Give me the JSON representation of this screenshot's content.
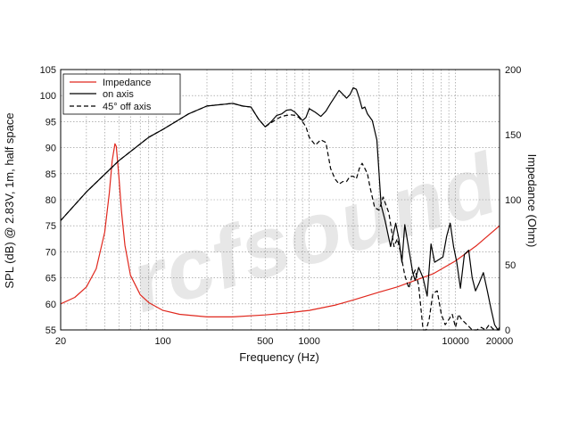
{
  "chart_data": {
    "type": "line",
    "xlabel": "Frequency (Hz)",
    "ylabel": "SPL (dB) @ 2.83V, 1m, half space",
    "y2label": "Impedance (Ohm)",
    "xscale": "log",
    "xlim": [
      20,
      20000
    ],
    "ylim": [
      55,
      105
    ],
    "y2lim": [
      0,
      200
    ],
    "grid": true,
    "legend_position": "top-left",
    "x_ticks": [
      "20",
      "100",
      "500",
      "1000",
      "10000",
      "20000"
    ],
    "y_ticks": [
      "55",
      "60",
      "65",
      "70",
      "75",
      "80",
      "85",
      "90",
      "95",
      "100",
      "105"
    ],
    "y2_ticks": [
      "0",
      "50",
      "100",
      "150",
      "200"
    ],
    "watermark": "rcfsound",
    "series": [
      {
        "name": "Impedance",
        "axis": "right",
        "color": "#e0281e",
        "dash": "solid",
        "x": [
          20,
          25,
          30,
          35,
          40,
          43,
          45,
          47,
          48,
          50,
          52,
          55,
          60,
          70,
          80,
          100,
          130,
          200,
          300,
          500,
          700,
          1000,
          1500,
          2000,
          3000,
          4000,
          5000,
          7000,
          10000,
          14000,
          20000
        ],
        "y": [
          20,
          25,
          33,
          47,
          75,
          105,
          130,
          143,
          141,
          118,
          92,
          65,
          42,
          27,
          21,
          15,
          12,
          10,
          10,
          11.5,
          13,
          15,
          19,
          23,
          29,
          33,
          37,
          43,
          53,
          65,
          80
        ]
      },
      {
        "name": "on axis",
        "axis": "left",
        "color": "#000000",
        "dash": "solid",
        "x": [
          20,
          30,
          50,
          80,
          100,
          150,
          200,
          300,
          350,
          400,
          450,
          500,
          550,
          600,
          650,
          700,
          750,
          800,
          850,
          900,
          950,
          1000,
          1100,
          1200,
          1300,
          1400,
          1600,
          1800,
          1900,
          2000,
          2100,
          2200,
          2300,
          2400,
          2500,
          2700,
          2900,
          3100,
          3300,
          3600,
          3900,
          4100,
          4300,
          4500,
          4700,
          4900,
          5100,
          5300,
          5600,
          6000,
          6400,
          6800,
          7200,
          7700,
          8200,
          8700,
          9200,
          9700,
          10200,
          10800,
          11500,
          12300,
          13000,
          13700,
          14500,
          15500,
          16500,
          17500,
          18500,
          19500,
          20000
        ],
        "y": [
          76,
          81.5,
          87.5,
          92,
          93.5,
          96.5,
          98,
          98.5,
          98,
          97.8,
          95.5,
          94,
          95,
          96.2,
          96.5,
          97.2,
          97.3,
          96.8,
          96,
          95.2,
          95.8,
          97.5,
          96.8,
          96,
          97,
          98.5,
          101,
          99.5,
          100.2,
          101.5,
          101.2,
          99.5,
          97.5,
          97.8,
          96.5,
          95.2,
          91.5,
          79,
          76,
          71,
          75.5,
          72.5,
          68,
          75.2,
          72,
          69,
          66,
          64.5,
          67,
          65,
          61.5,
          71.5,
          68,
          68.5,
          69,
          73,
          75.5,
          71,
          68,
          63,
          69.5,
          70.3,
          65,
          62.5,
          64,
          66,
          62.5,
          59,
          56,
          54.5,
          55.5
        ]
      },
      {
        "name": "45° off axis",
        "axis": "left",
        "color": "#000000",
        "dash": "dashed",
        "x": [
          20,
          30,
          50,
          80,
          100,
          150,
          200,
          300,
          350,
          400,
          450,
          500,
          550,
          600,
          650,
          700,
          750,
          800,
          850,
          900,
          950,
          1000,
          1100,
          1200,
          1300,
          1400,
          1500,
          1600,
          1700,
          1800,
          1900,
          2000,
          2100,
          2200,
          2300,
          2400,
          2500,
          2600,
          2800,
          3000,
          3200,
          3500,
          3800,
          4000,
          4200,
          4500,
          4800,
          5000,
          5300,
          5600,
          6000,
          6300,
          6600,
          7000,
          7500,
          8000,
          8500,
          9000,
          9500,
          10000,
          10500,
          11000,
          12000,
          13000,
          14000,
          15000,
          16000,
          17000,
          18000,
          19000,
          20000
        ],
        "y": [
          76,
          81.5,
          87.5,
          92,
          93.5,
          96.5,
          98,
          98.5,
          98,
          97.8,
          95.5,
          94,
          94.8,
          95.5,
          96,
          96.2,
          96.3,
          96.2,
          95.8,
          95,
          94,
          92,
          90.5,
          91.5,
          91,
          86,
          84,
          83,
          83.5,
          83.5,
          84.5,
          84.5,
          84,
          86,
          87,
          86,
          85,
          82.5,
          78.5,
          78,
          80.5,
          77.5,
          71,
          72.5,
          70,
          65.5,
          63,
          65,
          66.5,
          63.5,
          55,
          54,
          57,
          62,
          62.5,
          58,
          56,
          57,
          58,
          55.5,
          58,
          57,
          56,
          54.5,
          55,
          55.5,
          55,
          56,
          55.2,
          54.5,
          55
        ]
      }
    ]
  }
}
